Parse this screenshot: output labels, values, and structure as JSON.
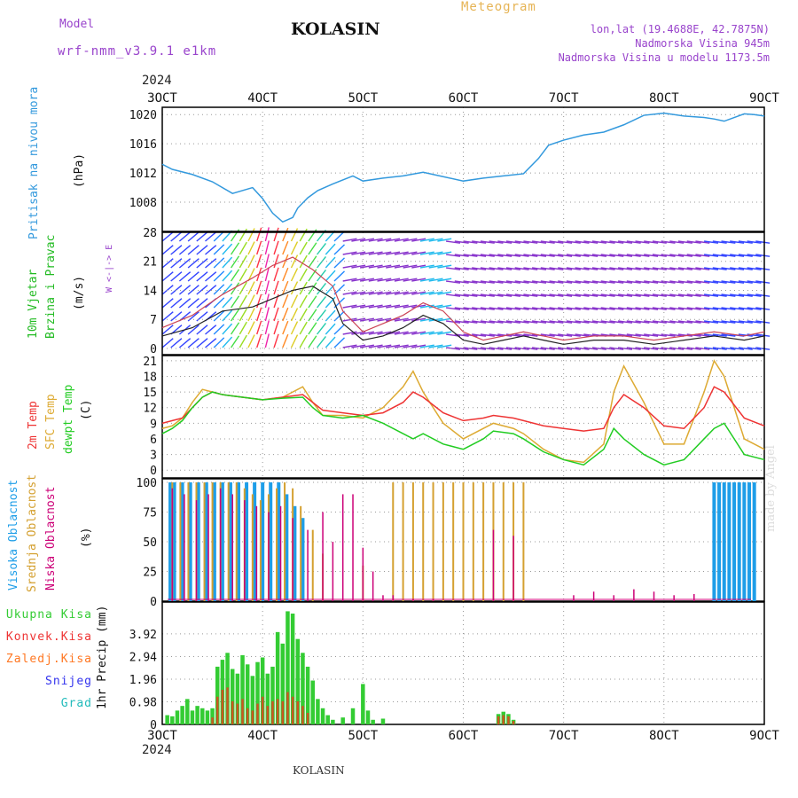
{
  "header": {
    "model_label": "Model",
    "model_name": "wrf-nmm_v3.9.1  e1km",
    "station": "KOLASIN",
    "meteogram_label": "Meteogram",
    "lonlat": "lon,lat (19.4688E, 42.7875N)",
    "altitude": "Nadmorska Visina 945m",
    "model_altitude": "Nadmorska Visina u modelu 1173.5m",
    "year_top": "2024",
    "year_bottom": "2024",
    "footer_station": "KOLASIN",
    "watermark": "made by Angel"
  },
  "colors": {
    "pressure": "#3399dd",
    "purple": "#9944cc",
    "wind_title": "#22bb22",
    "temp2m": "#ee3333",
    "sfc": "#ddaa33",
    "dewpt": "#22cc22",
    "high_cloud": "#1e9ee8",
    "mid_cloud": "#d4a030",
    "low_cloud": "#cc0077",
    "total_precip": "#33cc33",
    "conv_precip": "#ee3333",
    "frz_precip": "#ff7722",
    "snow": "#3333ee",
    "hail": "#22bbbb"
  },
  "chart_data": [
    {
      "type": "line",
      "panel": "pressure",
      "ylabel": "Pritisak na nivou mora",
      "unit": "(hPa)",
      "ylim": [
        1004,
        1021
      ],
      "yticks": [
        1008,
        1012,
        1016,
        1020
      ],
      "xticks": [
        "3OCT",
        "4OCT",
        "5OCT",
        "6OCT",
        "7OCT",
        "8OCT",
        "9OCT"
      ],
      "grid": true,
      "series": [
        {
          "x": [
            0,
            0.1,
            0.3,
            0.5,
            0.7,
            0.9,
            1.0,
            1.1,
            1.2,
            1.3,
            1.35,
            1.45,
            1.55,
            1.7,
            1.9,
            2.0,
            2.2,
            2.4,
            2.6,
            2.8,
            3.0,
            3.2,
            3.4,
            3.6,
            3.75,
            3.85,
            4.0,
            4.2,
            4.4,
            4.6,
            4.8,
            5.0,
            5.2,
            5.4,
            5.5,
            5.6,
            5.7,
            5.8,
            5.9,
            6.0
          ],
          "values": [
            1013.2,
            1012.5,
            1011.8,
            1010.8,
            1009.2,
            1010.0,
            1008.5,
            1006.5,
            1005.3,
            1005.9,
            1007.2,
            1008.6,
            1009.6,
            1010.5,
            1011.6,
            1010.9,
            1011.3,
            1011.6,
            1012.1,
            1011.5,
            1010.9,
            1011.3,
            1011.6,
            1011.9,
            1014.0,
            1015.8,
            1016.5,
            1017.2,
            1017.6,
            1018.6,
            1019.9,
            1020.2,
            1019.8,
            1019.6,
            1019.4,
            1019.1,
            1019.6,
            1020.1,
            1020.0,
            1019.8
          ]
        }
      ]
    },
    {
      "type": "line",
      "panel": "wind",
      "ylabel": "10m Vjetar Brzina i Pravac",
      "unit": "(m/s)",
      "ylim": [
        -1.5,
        28
      ],
      "yticks": [
        0,
        7,
        14,
        21,
        28
      ],
      "compass": "W <-|-> E",
      "grid": true,
      "series": [
        {
          "name": "speed",
          "x": [
            0,
            0.3,
            0.6,
            0.9,
            1.1,
            1.3,
            1.5,
            1.7,
            1.8,
            2.0,
            2.2,
            2.4,
            2.6,
            2.8,
            3.0,
            3.2,
            3.4,
            3.6,
            3.8,
            4.0,
            4.3,
            4.6,
            4.9,
            5.2,
            5.5,
            5.8,
            6.0
          ],
          "values": [
            3,
            5,
            9,
            10,
            12,
            14,
            15,
            12,
            6,
            2,
            3,
            5,
            8,
            6,
            2,
            1,
            2,
            3,
            2,
            1,
            2,
            2,
            1,
            2,
            3,
            2,
            3
          ]
        },
        {
          "name": "gust",
          "x": [
            0,
            0.3,
            0.6,
            0.9,
            1.1,
            1.3,
            1.5,
            1.7,
            1.8,
            2.0,
            2.2,
            2.4,
            2.6,
            2.8,
            3.0,
            3.2,
            3.4,
            3.6,
            3.8,
            4.0,
            4.3,
            4.6,
            4.9,
            5.2,
            5.5,
            5.8,
            6.0
          ],
          "values": [
            5,
            8,
            13,
            17,
            20,
            22,
            19,
            15,
            9,
            4,
            6,
            8,
            11,
            9,
            4,
            2,
            3,
            4,
            3,
            2,
            3,
            3,
            2,
            3,
            4,
            3,
            4
          ]
        }
      ]
    },
    {
      "type": "line",
      "panel": "temperature",
      "ylabel": [
        "2m Temp",
        "SFC Temp",
        "dewpt Temp"
      ],
      "unit": "(C)",
      "ylim": [
        -1.5,
        22
      ],
      "yticks": [
        0,
        3,
        6,
        9,
        12,
        15,
        18,
        21
      ],
      "grid": true,
      "series": [
        {
          "name": "2m Temp",
          "x": [
            0,
            0.1,
            0.2,
            0.3,
            0.4,
            0.5,
            0.6,
            0.8,
            1.0,
            1.2,
            1.4,
            1.5,
            1.6,
            1.8,
            2.0,
            2.2,
            2.4,
            2.5,
            2.6,
            2.8,
            3.0,
            3.2,
            3.3,
            3.5,
            3.6,
            3.8,
            4.0,
            4.2,
            4.4,
            4.5,
            4.6,
            4.8,
            5.0,
            5.2,
            5.4,
            5.5,
            5.6,
            5.8,
            6.0
          ],
          "values": [
            9,
            9.5,
            10,
            12,
            14,
            15,
            14.5,
            14,
            13.5,
            14,
            14.5,
            13,
            11.5,
            11,
            10.5,
            11,
            13,
            15,
            14,
            11,
            9.5,
            10,
            10.5,
            10,
            9.5,
            8.5,
            8,
            7.5,
            8,
            12,
            14.5,
            12,
            8.5,
            8,
            12,
            16,
            15,
            10,
            8.5
          ]
        },
        {
          "name": "SFC Temp",
          "x": [
            0,
            0.1,
            0.2,
            0.3,
            0.4,
            0.5,
            0.6,
            0.8,
            1.0,
            1.2,
            1.4,
            1.5,
            1.6,
            1.8,
            2.0,
            2.2,
            2.4,
            2.5,
            2.6,
            2.8,
            3.0,
            3.2,
            3.3,
            3.5,
            3.6,
            3.8,
            4.0,
            4.2,
            4.4,
            4.5,
            4.6,
            4.8,
            5.0,
            5.2,
            5.4,
            5.5,
            5.6,
            5.8,
            6.0
          ],
          "values": [
            8,
            8.5,
            10,
            13,
            15.5,
            15,
            14.5,
            14,
            13.5,
            14,
            16,
            13,
            10.5,
            10.5,
            10,
            12,
            16,
            19,
            15,
            9,
            6,
            8,
            9,
            8,
            7,
            4,
            2,
            1.5,
            5,
            15,
            20,
            13,
            5,
            5,
            15,
            21,
            18,
            6,
            4
          ]
        },
        {
          "name": "dewpt Temp",
          "x": [
            0,
            0.1,
            0.2,
            0.3,
            0.4,
            0.5,
            0.6,
            0.8,
            1.0,
            1.2,
            1.4,
            1.5,
            1.6,
            1.8,
            2.0,
            2.2,
            2.4,
            2.5,
            2.6,
            2.8,
            3.0,
            3.2,
            3.3,
            3.5,
            3.6,
            3.8,
            4.0,
            4.2,
            4.4,
            4.5,
            4.6,
            4.8,
            5.0,
            5.2,
            5.4,
            5.5,
            5.6,
            5.8,
            6.0
          ],
          "values": [
            7,
            8,
            9.5,
            12,
            14,
            15,
            14.5,
            14,
            13.5,
            13.8,
            14,
            12,
            10.5,
            10,
            10.5,
            9,
            7,
            6,
            7,
            5,
            4,
            6,
            7.5,
            7,
            6,
            3.5,
            2,
            1,
            4,
            8,
            6,
            3,
            1,
            2,
            6,
            8,
            9,
            3,
            2
          ]
        }
      ]
    },
    {
      "type": "bar",
      "panel": "clouds",
      "ylabel": [
        "Visoka Oblacnost",
        "Srednja Oblacnost",
        "Niska Oblacnost"
      ],
      "unit": "(%)",
      "ylim": [
        0,
        103
      ],
      "yticks": [
        0,
        25,
        50,
        75,
        100
      ],
      "grid": true,
      "series": [
        {
          "name": "Visoka Oblacnost",
          "x": [
            0.08,
            0.12,
            0.2,
            0.28,
            0.36,
            0.44,
            0.52,
            0.6,
            0.68,
            0.76,
            0.84,
            0.92,
            1.0,
            1.08,
            1.16,
            1.24,
            1.32,
            1.4,
            5.5,
            5.55,
            5.6,
            5.65,
            5.7,
            5.75,
            5.8,
            5.85,
            5.9
          ],
          "values": [
            100,
            100,
            100,
            100,
            100,
            100,
            100,
            100,
            100,
            100,
            100,
            100,
            100,
            100,
            100,
            90,
            80,
            70,
            100,
            100,
            100,
            100,
            100,
            100,
            100,
            100,
            100
          ]
        },
        {
          "name": "Srednja Oblacnost",
          "x": [
            0.1,
            0.18,
            0.26,
            0.34,
            0.42,
            0.5,
            0.58,
            0.66,
            0.74,
            0.82,
            0.9,
            0.98,
            1.06,
            1.14,
            1.22,
            1.3,
            1.38,
            1.5,
            1.6,
            2.0,
            2.1,
            2.3,
            2.4,
            2.5,
            2.6,
            2.7,
            2.8,
            2.9,
            3.0,
            3.1,
            3.2,
            3.3,
            3.4,
            3.5,
            3.6
          ],
          "values": [
            100,
            100,
            100,
            100,
            100,
            100,
            100,
            100,
            100,
            95,
            90,
            85,
            90,
            95,
            100,
            95,
            80,
            60,
            40,
            30,
            0,
            100,
            100,
            100,
            100,
            100,
            100,
            100,
            100,
            100,
            100,
            100,
            100,
            100,
            100
          ]
        },
        {
          "name": "Niska Oblacnost",
          "x": [
            0.1,
            0.22,
            0.34,
            0.46,
            0.58,
            0.7,
            0.82,
            0.94,
            1.06,
            1.18,
            1.3,
            1.45,
            1.6,
            1.7,
            1.8,
            1.9,
            2.0,
            2.1,
            2.2,
            2.3,
            2.5,
            2.7,
            3.3,
            3.5,
            4.1,
            4.3,
            4.5,
            4.7,
            4.9,
            5.1,
            5.3
          ],
          "values": [
            95,
            90,
            85,
            90,
            95,
            90,
            85,
            80,
            75,
            80,
            70,
            60,
            75,
            50,
            90,
            90,
            45,
            25,
            5,
            5,
            2,
            2,
            60,
            55,
            5,
            8,
            5,
            10,
            8,
            5,
            6
          ]
        }
      ]
    },
    {
      "type": "bar",
      "panel": "precip",
      "ylabel": "1hr Precip",
      "unit": "(mm)",
      "ylim": [
        0,
        5.3
      ],
      "yticks": [
        0,
        0.98,
        1.96,
        2.94,
        3.92
      ],
      "legend": [
        "Ukupna Kisa",
        "Konvek.Kisa",
        "Zaledj.Kisa",
        "Snijeg",
        "Grad"
      ],
      "grid": true,
      "series": [
        {
          "name": "Ukupna Kisa",
          "x": [
            0.05,
            0.1,
            0.15,
            0.2,
            0.25,
            0.3,
            0.35,
            0.4,
            0.45,
            0.5,
            0.55,
            0.6,
            0.65,
            0.7,
            0.75,
            0.8,
            0.85,
            0.9,
            0.95,
            1.0,
            1.05,
            1.1,
            1.15,
            1.2,
            1.25,
            1.3,
            1.35,
            1.4,
            1.45,
            1.5,
            1.55,
            1.6,
            1.65,
            1.7,
            1.8,
            1.9,
            2.0,
            2.05,
            2.1,
            2.2,
            3.35,
            3.4,
            3.45,
            3.5
          ],
          "values": [
            0.4,
            0.35,
            0.6,
            0.8,
            1.1,
            0.6,
            0.8,
            0.7,
            0.6,
            0.7,
            2.5,
            2.8,
            3.1,
            2.4,
            2.2,
            3.0,
            2.6,
            2.1,
            2.7,
            2.9,
            2.2,
            2.5,
            4.0,
            3.5,
            4.9,
            4.8,
            3.7,
            3.1,
            2.5,
            1.9,
            1.1,
            0.7,
            0.4,
            0.2,
            0.3,
            0.7,
            1.75,
            0.6,
            0.2,
            0.25,
            0.45,
            0.55,
            0.45,
            0.2
          ]
        },
        {
          "name": "Konvek.Kisa",
          "x": [
            0.5,
            0.55,
            0.6,
            0.65,
            0.7,
            0.75,
            0.8,
            0.85,
            0.9,
            0.95,
            1.0,
            1.05,
            1.1,
            1.15,
            1.2,
            1.25,
            1.3,
            1.35,
            1.4,
            1.45,
            3.35,
            3.4,
            3.45,
            3.5
          ],
          "values": [
            0.3,
            1.2,
            1.5,
            1.6,
            1.0,
            0.9,
            1.1,
            0.7,
            0.6,
            0.9,
            1.2,
            0.8,
            1.0,
            1.1,
            1.0,
            1.4,
            1.2,
            1.0,
            0.8,
            0.5,
            0.35,
            0.4,
            0.35,
            0.15
          ]
        }
      ]
    }
  ]
}
